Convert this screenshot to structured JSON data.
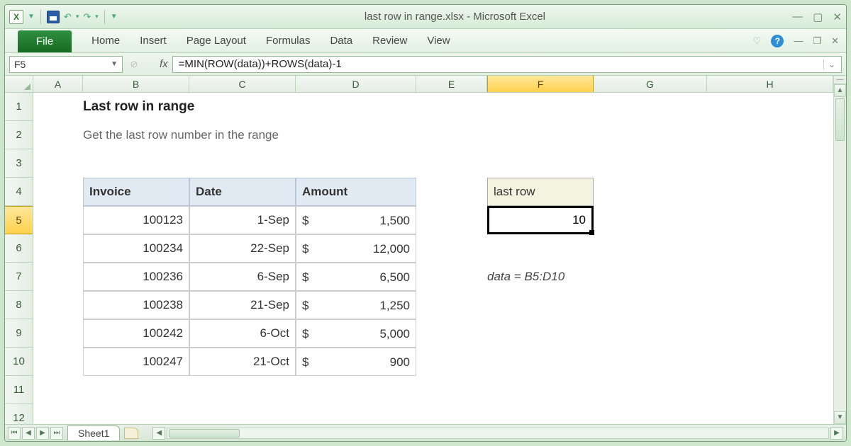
{
  "window": {
    "title": "last row in range.xlsx  -  Microsoft Excel",
    "app_glyph": "X"
  },
  "ribbon": {
    "file": "File",
    "tabs": [
      "Home",
      "Insert",
      "Page Layout",
      "Formulas",
      "Data",
      "Review",
      "View"
    ]
  },
  "formula_bar": {
    "name_box": "F5",
    "fx_label": "fx",
    "formula": "=MIN(ROW(data))+ROWS(data)-1"
  },
  "columns": {
    "labels": [
      "A",
      "B",
      "C",
      "D",
      "E",
      "F",
      "G",
      "H"
    ],
    "widths": [
      70,
      150,
      150,
      170,
      100,
      150,
      160,
      178
    ],
    "selected_index": 5
  },
  "rows": {
    "count": 12,
    "height": 40,
    "selected_index": 4
  },
  "content": {
    "title": "Last row in range",
    "subtitle": "Get the last row number in the range",
    "table": {
      "headers": [
        "Invoice",
        "Date",
        "Amount"
      ],
      "header_bg": "#e1e9f2",
      "header_border": "#b7c5d6",
      "cell_border": "#cccccc",
      "rows": [
        {
          "invoice": "100123",
          "date": "1-Sep",
          "amount": "1,500"
        },
        {
          "invoice": "100234",
          "date": "22-Sep",
          "amount": "12,000"
        },
        {
          "invoice": "100236",
          "date": "6-Sep",
          "amount": "6,500"
        },
        {
          "invoice": "100238",
          "date": "21-Sep",
          "amount": "1,250"
        },
        {
          "invoice": "100242",
          "date": "6-Oct",
          "amount": "5,000"
        },
        {
          "invoice": "100247",
          "date": "21-Oct",
          "amount": "900"
        }
      ],
      "currency_symbol": "$"
    },
    "result": {
      "header": "last row",
      "value": "10",
      "header_bg": "#f4f3df"
    },
    "note": "data = B5:D10"
  },
  "sheet_tabs": {
    "active": "Sheet1"
  },
  "colors": {
    "window_bg": "#cde6cd",
    "ribbon_file_bg": "#2f8f3f",
    "col_sel_bg": "#ffd24d",
    "active_cell_border": "#000000"
  }
}
